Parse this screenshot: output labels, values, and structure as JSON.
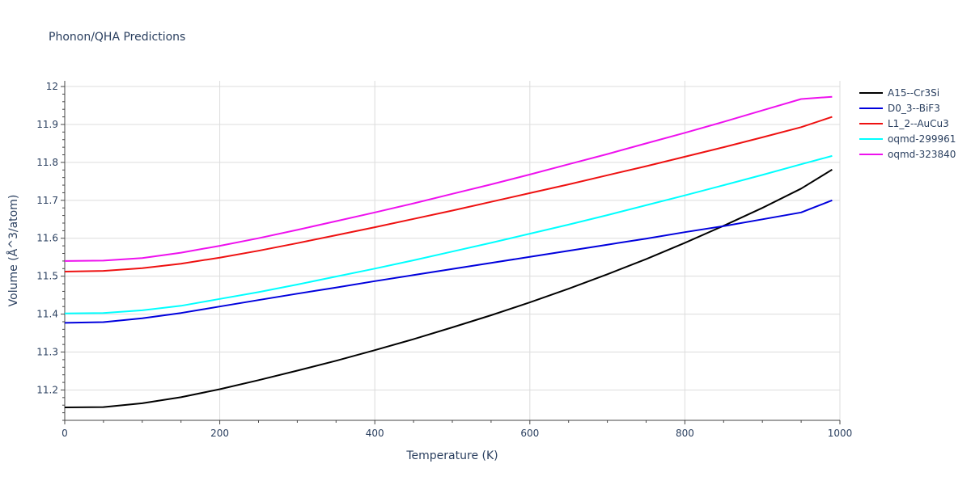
{
  "chart_data": {
    "type": "line",
    "title": "Phonon/QHA Predictions",
    "xlabel": "Temperature (K)",
    "ylabel": "Volume (Å^3/atom)",
    "xlim": [
      0,
      1000
    ],
    "ylim": [
      11.12,
      12.015
    ],
    "xticks": [
      0,
      200,
      400,
      600,
      800,
      1000
    ],
    "yticks": [
      11.2,
      11.3,
      11.4,
      11.5,
      11.6,
      11.7,
      11.8,
      11.9,
      12
    ],
    "grid": true,
    "legend_position": "top-right",
    "series": [
      {
        "name": "A15--Cr3Si",
        "color": "#000000",
        "x": [
          0,
          50,
          100,
          150,
          200,
          250,
          300,
          350,
          400,
          450,
          500,
          550,
          600,
          650,
          700,
          750,
          800,
          850,
          900,
          950,
          990
        ],
        "y": [
          11.154,
          11.155,
          11.165,
          11.181,
          11.202,
          11.226,
          11.251,
          11.277,
          11.305,
          11.334,
          11.365,
          11.397,
          11.431,
          11.467,
          11.505,
          11.545,
          11.588,
          11.633,
          11.68,
          11.731,
          11.781
        ]
      },
      {
        "name": "D0_3--BiF3",
        "color": "#0000dd",
        "x": [
          0,
          50,
          100,
          150,
          200,
          250,
          300,
          350,
          400,
          450,
          500,
          550,
          600,
          650,
          700,
          750,
          800,
          850,
          900,
          950,
          990
        ],
        "y": [
          11.377,
          11.379,
          11.389,
          11.403,
          11.42,
          11.437,
          11.454,
          11.47,
          11.487,
          11.503,
          11.519,
          11.535,
          11.551,
          11.567,
          11.583,
          11.599,
          11.616,
          11.632,
          11.65,
          11.668,
          11.7
        ]
      },
      {
        "name": "L1_2--AuCu3",
        "color": "#ee1111",
        "x": [
          0,
          50,
          100,
          150,
          200,
          250,
          300,
          350,
          400,
          450,
          500,
          550,
          600,
          650,
          700,
          750,
          800,
          850,
          900,
          950,
          990
        ],
        "y": [
          11.512,
          11.514,
          11.521,
          11.533,
          11.549,
          11.567,
          11.587,
          11.608,
          11.629,
          11.651,
          11.673,
          11.696,
          11.719,
          11.742,
          11.766,
          11.79,
          11.815,
          11.84,
          11.866,
          11.893,
          11.92
        ]
      },
      {
        "name": "oqmd-299961",
        "color": "#00ffff",
        "x": [
          0,
          50,
          100,
          150,
          200,
          250,
          300,
          350,
          400,
          450,
          500,
          550,
          600,
          650,
          700,
          750,
          800,
          850,
          900,
          950,
          990
        ],
        "y": [
          11.402,
          11.403,
          11.41,
          11.422,
          11.44,
          11.458,
          11.478,
          11.499,
          11.52,
          11.542,
          11.565,
          11.588,
          11.612,
          11.636,
          11.661,
          11.687,
          11.713,
          11.74,
          11.767,
          11.795,
          11.817
        ]
      },
      {
        "name": "oqmd-323840",
        "color": "#ee11ee",
        "x": [
          0,
          50,
          100,
          150,
          200,
          250,
          300,
          350,
          400,
          450,
          500,
          550,
          600,
          650,
          700,
          750,
          800,
          850,
          900,
          950,
          990
        ],
        "y": [
          11.54,
          11.541,
          11.548,
          11.562,
          11.58,
          11.6,
          11.622,
          11.645,
          11.668,
          11.692,
          11.717,
          11.742,
          11.768,
          11.795,
          11.822,
          11.85,
          11.878,
          11.907,
          11.937,
          11.967,
          11.973
        ]
      }
    ]
  }
}
